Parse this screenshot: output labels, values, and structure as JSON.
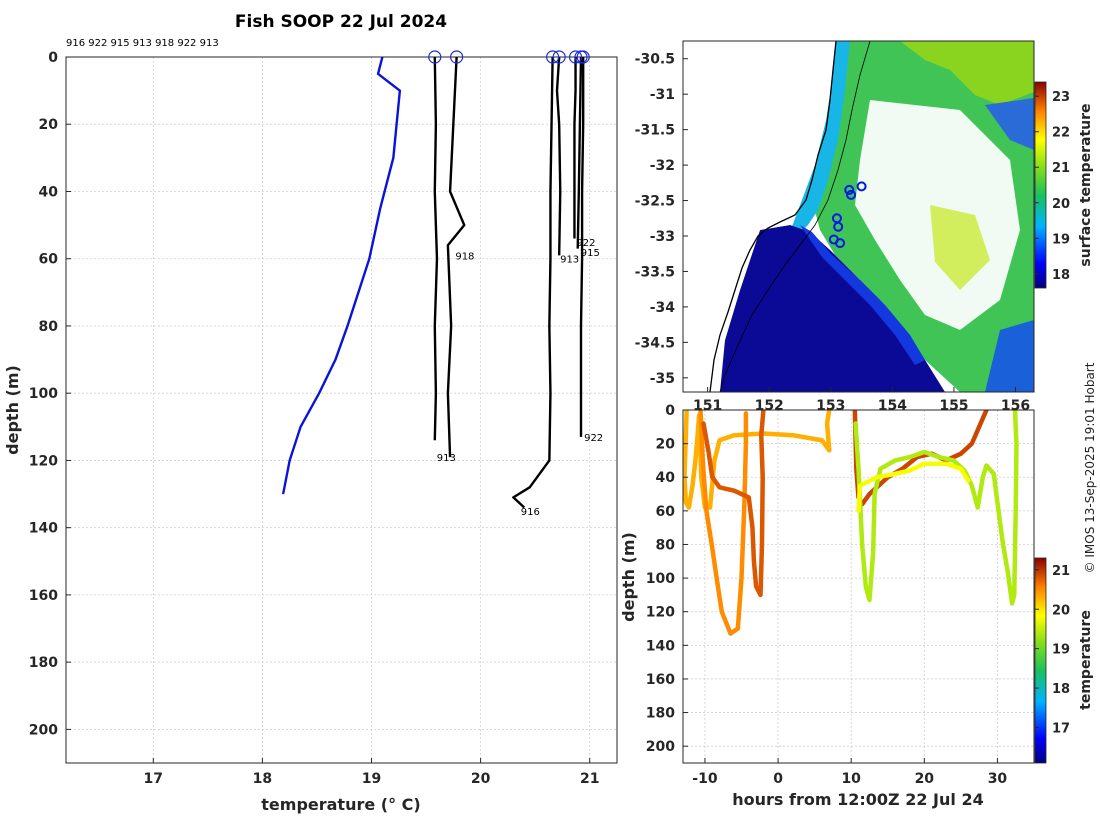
{
  "title": "Fish SOOP 22 Jul 2024",
  "credit": "© IMOS 13-Sep-2025 19:01 Hobart",
  "colors": {
    "profile": "#000000",
    "climatology": "#0a14d8",
    "marker": "#1a2ad8",
    "coast": "#000000",
    "land": "#ffffff"
  },
  "chart_data": [
    {
      "id": "profiles",
      "type": "line",
      "title": "Fish SOOP 22 Jul 2024",
      "header_ids": "916 922 915 913 918 922 913",
      "xlabel": "temperature (° C)",
      "ylabel": "depth (m)",
      "xlim": [
        16.2,
        21.25
      ],
      "ylim": [
        210,
        0
      ],
      "xticks": [
        17,
        18,
        19,
        20,
        21
      ],
      "yticks": [
        0,
        20,
        40,
        60,
        80,
        100,
        120,
        140,
        160,
        180,
        200
      ],
      "grid": true,
      "climatology": {
        "name": "climatology",
        "points": [
          [
            19.1,
            0
          ],
          [
            19.06,
            5
          ],
          [
            19.26,
            10
          ],
          [
            19.2,
            30
          ],
          [
            19.08,
            45
          ],
          [
            18.98,
            60
          ],
          [
            18.88,
            70
          ],
          [
            18.78,
            80
          ],
          [
            18.67,
            90
          ],
          [
            18.52,
            100
          ],
          [
            18.35,
            110
          ],
          [
            18.25,
            120
          ],
          [
            18.19,
            130
          ]
        ]
      },
      "profiles": [
        {
          "id": "913",
          "label_at": [
            19.58,
            119
          ],
          "points": [
            [
              19.58,
              0
            ],
            [
              19.59,
              20
            ],
            [
              19.58,
              40
            ],
            [
              19.6,
              60
            ],
            [
              19.58,
              80
            ],
            [
              19.59,
              100
            ],
            [
              19.58,
              114
            ]
          ]
        },
        {
          "id": "918",
          "label_at": [
            19.75,
            59
          ],
          "points": [
            [
              19.78,
              0
            ],
            [
              19.75,
              20
            ],
            [
              19.72,
              40
            ],
            [
              19.85,
              50
            ],
            [
              19.7,
              56
            ],
            [
              19.73,
              80
            ],
            [
              19.7,
              100
            ],
            [
              19.72,
              119
            ]
          ]
        },
        {
          "id": "913",
          "label_at": [
            20.71,
            60
          ],
          "points": [
            [
              20.72,
              0
            ],
            [
              20.7,
              10
            ],
            [
              20.72,
              20
            ],
            [
              20.73,
              40
            ],
            [
              20.72,
              59
            ]
          ]
        },
        {
          "id": "916",
          "label_at": [
            20.35,
            135
          ],
          "points": [
            [
              20.66,
              0
            ],
            [
              20.65,
              20
            ],
            [
              20.64,
              40
            ],
            [
              20.64,
              60
            ],
            [
              20.63,
              80
            ],
            [
              20.64,
              100
            ],
            [
              20.63,
              120
            ],
            [
              20.45,
              128
            ],
            [
              20.3,
              131
            ],
            [
              20.4,
              134
            ]
          ]
        },
        {
          "id": "922",
          "label_at": [
            20.86,
            55
          ],
          "points": [
            [
              20.87,
              0
            ],
            [
              20.87,
              10
            ],
            [
              20.86,
              20
            ],
            [
              20.86,
              40
            ],
            [
              20.86,
              54
            ]
          ]
        },
        {
          "id": "915",
          "label_at": [
            20.9,
            58
          ],
          "points": [
            [
              20.92,
              0
            ],
            [
              20.91,
              20
            ],
            [
              20.9,
              40
            ],
            [
              20.89,
              57
            ]
          ]
        },
        {
          "id": "922",
          "label_at": [
            20.93,
            113
          ],
          "points": [
            [
              20.94,
              0
            ],
            [
              20.94,
              20
            ],
            [
              20.93,
              40
            ],
            [
              20.93,
              60
            ],
            [
              20.92,
              80
            ],
            [
              20.92,
              100
            ],
            [
              20.92,
              113
            ]
          ]
        }
      ]
    },
    {
      "id": "map",
      "type": "heatmap",
      "colorbar_label": "surface temperature",
      "xticks": [
        151,
        152,
        153,
        154,
        155,
        156
      ],
      "ytick_labels": [
        "-30.5",
        "-31",
        "-31.5",
        "-32",
        "-32.5",
        "-33",
        "-33.5",
        "-34",
        "-34.5",
        "-35"
      ],
      "yticks": [
        -30.5,
        -31,
        -31.5,
        -32,
        -32.5,
        -33,
        -33.5,
        -34,
        -34.5,
        -35
      ],
      "xlim": [
        150.6,
        156.3
      ],
      "ylim": [
        -35.2,
        -30.25
      ],
      "clim": [
        17.6,
        23.4
      ],
      "colorbar_ticks": [
        18,
        19,
        20,
        21,
        22,
        23
      ],
      "stations": [
        [
          153.5,
          -32.3
        ],
        [
          153.3,
          -32.35
        ],
        [
          153.33,
          -32.42
        ],
        [
          153.1,
          -32.75
        ],
        [
          153.12,
          -32.87
        ],
        [
          153.05,
          -33.05
        ],
        [
          153.15,
          -33.1
        ]
      ]
    },
    {
      "id": "timeseries",
      "type": "scatter",
      "colorbar_label": "temperature",
      "xlabel": "hours from 12:00Z 22 Jul 24",
      "ylabel": "depth (m)",
      "xlim": [
        -13,
        35
      ],
      "ylim": [
        210,
        0
      ],
      "xticks": [
        -10,
        0,
        10,
        20,
        30
      ],
      "yticks": [
        0,
        20,
        40,
        60,
        80,
        100,
        120,
        140,
        160,
        180,
        200
      ],
      "clim": [
        16.1,
        21.3
      ],
      "colorbar_ticks": [
        17,
        18,
        19,
        20,
        21
      ],
      "tracks": [
        {
          "temp": 20.3,
          "points": [
            [
              -12.5,
              0
            ],
            [
              -12.8,
              40
            ],
            [
              -12.6,
              55
            ],
            [
              -12.2,
              58
            ],
            [
              -11.7,
              45
            ],
            [
              -11.3,
              30
            ],
            [
              -11,
              15
            ],
            [
              -10.8,
              3
            ],
            [
              -10.5,
              40
            ],
            [
              -10,
              58
            ],
            [
              -9.3,
              58
            ],
            [
              -8.7,
              30
            ],
            [
              -8,
              18
            ],
            [
              -6,
              15
            ],
            [
              -2,
              14
            ],
            [
              2,
              15
            ],
            [
              6,
              18
            ],
            [
              7,
              24
            ],
            [
              6.7,
              8
            ],
            [
              7,
              0
            ]
          ]
        },
        {
          "temp": 20.5,
          "points": [
            [
              -10.6,
              0
            ],
            [
              -10.3,
              30
            ],
            [
              -9.8,
              60
            ],
            [
              -9,
              82
            ],
            [
              -8.4,
              100
            ],
            [
              -7.7,
              120
            ],
            [
              -6.5,
              133
            ],
            [
              -5.5,
              130
            ],
            [
              -5,
              100
            ],
            [
              -4.6,
              55
            ],
            [
              -4.4,
              20
            ],
            [
              -4.4,
              2
            ]
          ]
        },
        {
          "temp": 20.8,
          "points": [
            [
              -10.2,
              8
            ],
            [
              -9.5,
              25
            ],
            [
              -9,
              40
            ],
            [
              -8,
              46
            ],
            [
              -6,
              48
            ],
            [
              -4,
              52
            ],
            [
              -3.5,
              70
            ],
            [
              -3.3,
              90
            ],
            [
              -3,
              105
            ],
            [
              -2.4,
              110
            ],
            [
              -2.2,
              80
            ],
            [
              -2.1,
              40
            ],
            [
              -2.3,
              15
            ],
            [
              -2,
              0
            ]
          ]
        },
        {
          "temp": 20.9,
          "points": [
            [
              10.5,
              0
            ],
            [
              10.7,
              35
            ],
            [
              11,
              52
            ],
            [
              11.5,
              56
            ],
            [
              12.5,
              50
            ],
            [
              15,
              40
            ],
            [
              17,
              35
            ],
            [
              19,
              28
            ],
            [
              21,
              26
            ],
            [
              23,
              30
            ],
            [
              25,
              26
            ],
            [
              26.5,
              20
            ],
            [
              28.5,
              0
            ]
          ]
        },
        {
          "temp": 19.4,
          "points": [
            [
              10.6,
              8
            ],
            [
              11,
              35
            ],
            [
              11.5,
              80
            ],
            [
              12,
              105
            ],
            [
              12.5,
              113
            ],
            [
              13,
              85
            ],
            [
              13.2,
              50
            ],
            [
              14,
              35
            ],
            [
              16,
              30
            ],
            [
              18,
              28
            ],
            [
              20,
              25
            ],
            [
              22,
              28
            ],
            [
              24,
              30
            ],
            [
              25.5,
              36
            ],
            [
              26.5,
              45
            ],
            [
              27.3,
              58
            ],
            [
              28,
              40
            ],
            [
              28.5,
              33
            ],
            [
              29.5,
              38
            ],
            [
              30,
              55
            ],
            [
              30.7,
              78
            ],
            [
              31.4,
              96
            ],
            [
              32,
              115
            ],
            [
              32.3,
              110
            ],
            [
              32.5,
              60
            ],
            [
              32.6,
              20
            ],
            [
              32.4,
              0
            ]
          ]
        },
        {
          "temp": 19.8,
          "points": [
            [
              11,
              60
            ],
            [
              11.2,
              45
            ],
            [
              13.5,
              40
            ],
            [
              16,
              38
            ],
            [
              18,
              36
            ],
            [
              20,
              32
            ],
            [
              23,
              32
            ],
            [
              25,
              35
            ],
            [
              26,
              42
            ]
          ]
        }
      ]
    }
  ]
}
